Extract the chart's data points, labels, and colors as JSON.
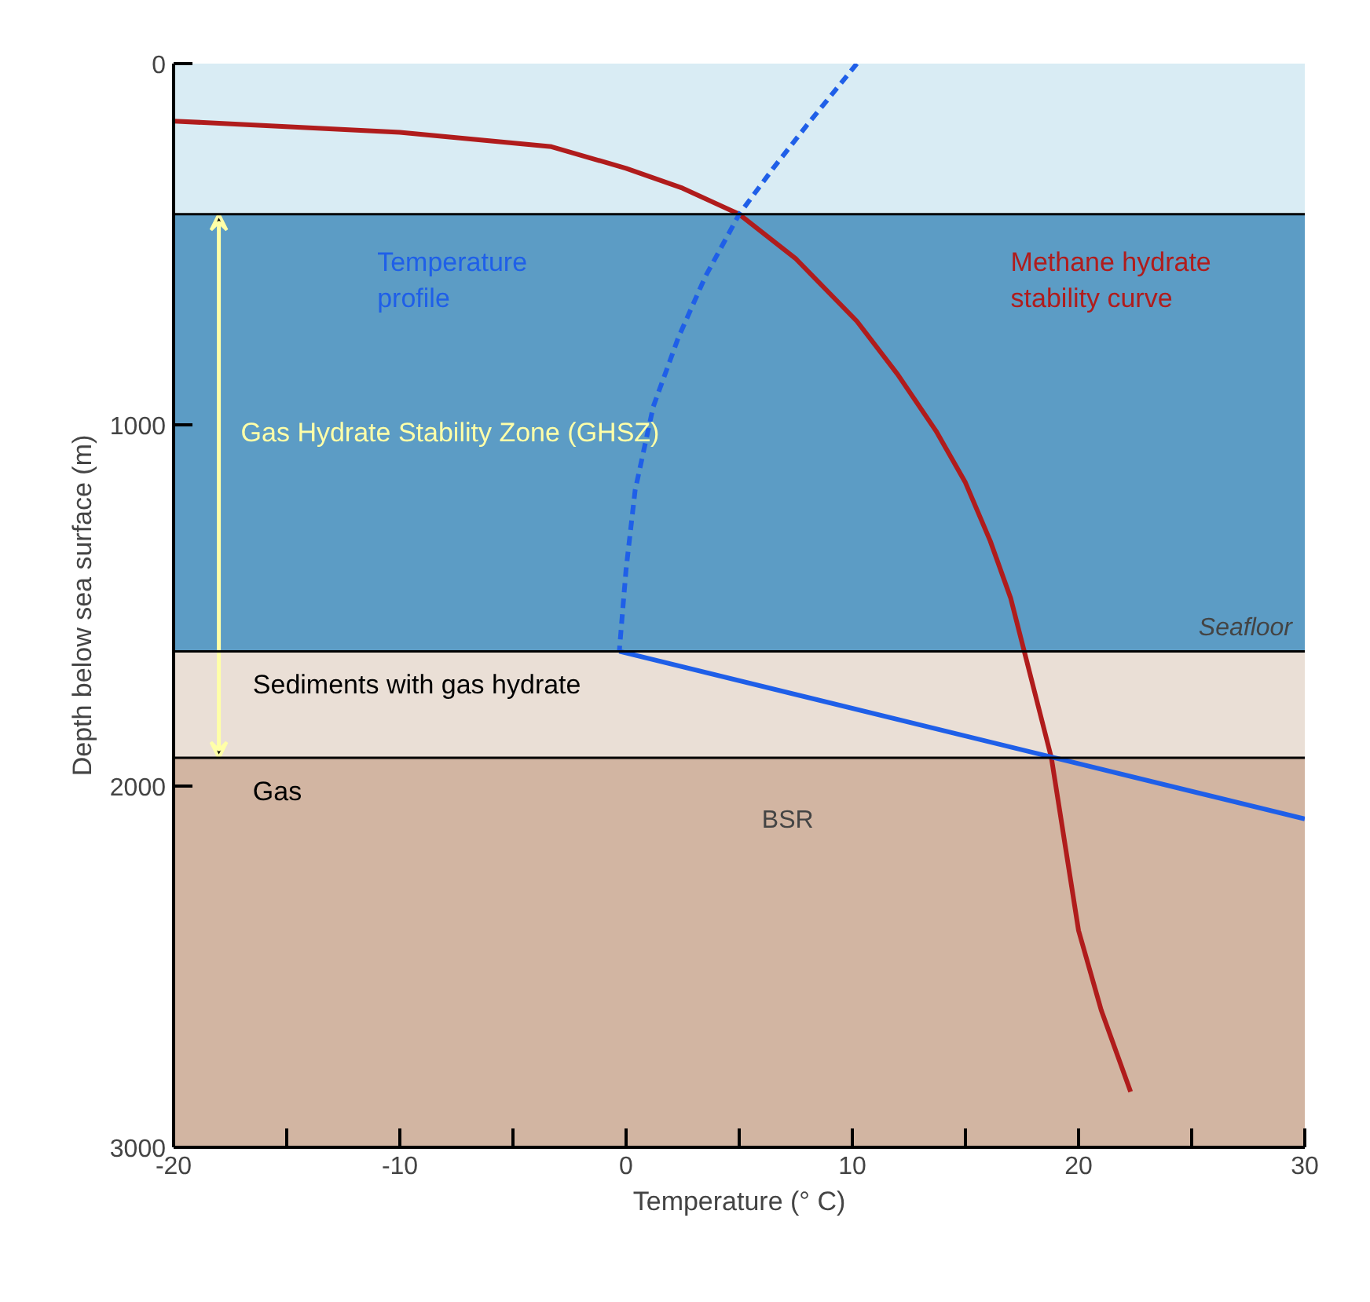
{
  "chart_data": {
    "type": "line",
    "xlabel": "Temperature (° C)",
    "ylabel": "Depth below sea surface (m)",
    "xlim": [
      -20,
      30
    ],
    "ylim": [
      3000,
      0
    ],
    "xticks": [
      -20,
      {
        "value": -15,
        "label": null
      },
      -10,
      {
        "value": -5,
        "label": null
      },
      0,
      {
        "value": 5,
        "label": null
      },
      10,
      {
        "value": 15,
        "label": null
      },
      20,
      {
        "value": 25,
        "label": null
      },
      30
    ],
    "yticks": [
      0,
      1000,
      2000,
      3000
    ],
    "annotations": [
      "Gas Hydrate Stability Zone (GHSZ)"
    ],
    "series": [
      {
        "name": "Methane hydrate stability curve",
        "color": "#b01c1c",
        "line_style": "solid",
        "x": [
          -20,
          -10,
          -3.3,
          0,
          2.5,
          5,
          7.5,
          10.2,
          12,
          13.7,
          15,
          16.1,
          17,
          17.6,
          18.8,
          20,
          21,
          22.3
        ],
        "values": [
          159,
          190,
          230,
          290,
          345,
          417,
          540,
          713,
          860,
          1017,
          1160,
          1322,
          1480,
          1627,
          1922,
          2400,
          2620,
          2846
        ]
      },
      {
        "name": "Temperature profile",
        "color": "#1f5fe8",
        "line_style": "dashed",
        "x": [
          10.2,
          8,
          6.5,
          5,
          3.5,
          2.3,
          1.2,
          0.4,
          0,
          -0.3
        ],
        "values": [
          0,
          170,
          290,
          417,
          590,
          760,
          950,
          1181,
          1400,
          1627
        ]
      },
      {
        "color": "#1f5fe8",
        "line_style": "solid",
        "x": [
          -0.3,
          30
        ],
        "values": [
          1627,
          2091
        ]
      }
    ],
    "bands": [
      {
        "axis": "y",
        "from": 0,
        "to": 417,
        "color": "#d9ecf4"
      },
      {
        "axis": "y",
        "from": 417,
        "to": 1627,
        "color": "#5c9cc5"
      },
      {
        "axis": "y",
        "from": 1627,
        "to": 1922,
        "label": "Sediments with gas hydrate",
        "color": "#eadfd6"
      },
      {
        "axis": "y",
        "from": 1922,
        "to": 3000,
        "label": "Gas",
        "color": "#d2b5a2"
      }
    ],
    "ref_lines": [
      {
        "axis": "y",
        "value": 417,
        "color": "#000000"
      },
      {
        "axis": "y",
        "value": 1627,
        "label": "Seafloor",
        "color": "#000000"
      },
      {
        "axis": "y",
        "value": 1922,
        "label": "BSR",
        "color": "#000000"
      }
    ]
  }
}
